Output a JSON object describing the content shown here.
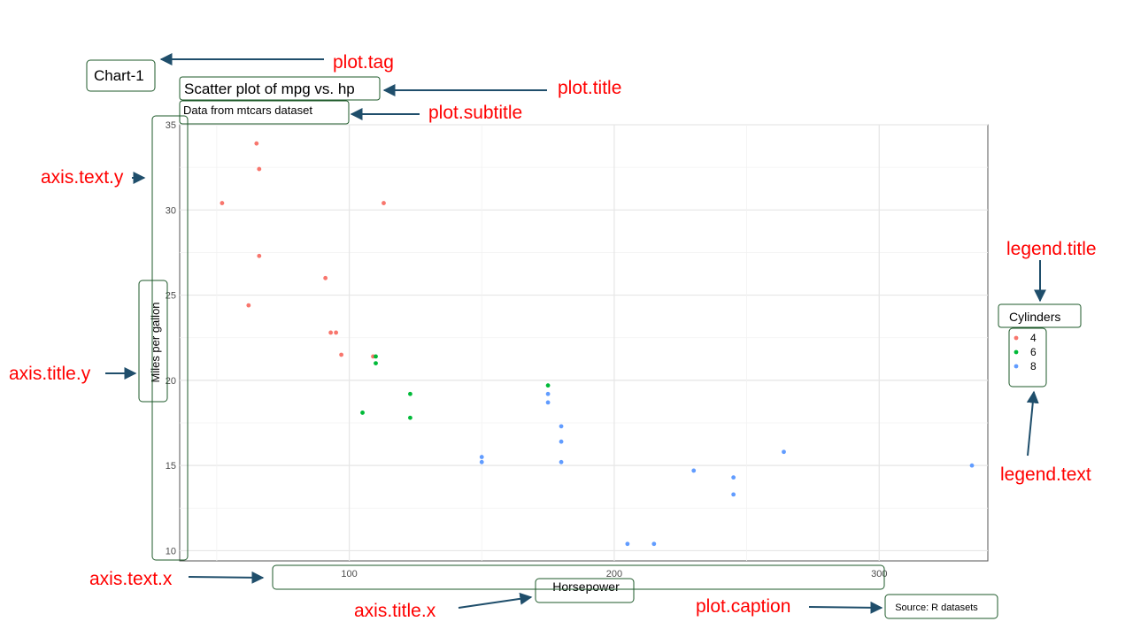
{
  "chart_data": {
    "type": "scatter",
    "tag": "Chart-1",
    "title": "Scatter plot of mpg vs. hp",
    "subtitle": "Data from mtcars dataset",
    "xlabel": "Horsepower",
    "ylabel": "Miles per gallon",
    "caption": "Source: R datasets",
    "xlim": [
      36,
      341
    ],
    "ylim": [
      9.4,
      35
    ],
    "xticks": [
      100,
      200,
      300
    ],
    "yticks": [
      10,
      15,
      20,
      25,
      30,
      35
    ],
    "grid": true,
    "legend": {
      "title": "Cylinders",
      "position": "right",
      "entries": [
        "4",
        "6",
        "8"
      ]
    },
    "colors": {
      "4": "#F8766D",
      "6": "#00BA38",
      "8": "#619CFF"
    },
    "series": [
      {
        "name": "4",
        "points": [
          [
            52,
            30.4
          ],
          [
            62,
            24.4
          ],
          [
            65,
            33.9
          ],
          [
            66,
            32.4
          ],
          [
            66,
            27.3
          ],
          [
            91,
            26.0
          ],
          [
            93,
            22.8
          ],
          [
            95,
            22.8
          ],
          [
            97,
            21.5
          ],
          [
            109,
            21.4
          ],
          [
            113,
            30.4
          ]
        ]
      },
      {
        "name": "6",
        "points": [
          [
            105,
            18.1
          ],
          [
            110,
            21.0
          ],
          [
            110,
            21.4
          ],
          [
            123,
            19.2
          ],
          [
            123,
            17.8
          ],
          [
            175,
            19.7
          ]
        ]
      },
      {
        "name": "8",
        "points": [
          [
            150,
            15.5
          ],
          [
            150,
            15.2
          ],
          [
            175,
            19.2
          ],
          [
            175,
            18.7
          ],
          [
            180,
            17.3
          ],
          [
            180,
            16.4
          ],
          [
            180,
            15.2
          ],
          [
            205,
            10.4
          ],
          [
            215,
            10.4
          ],
          [
            230,
            14.7
          ],
          [
            245,
            14.3
          ],
          [
            245,
            13.3
          ],
          [
            264,
            15.8
          ],
          [
            335,
            15.0
          ]
        ]
      }
    ]
  },
  "annotations": [
    {
      "text": "plot.tag",
      "color": "#ff0000"
    },
    {
      "text": "plot.title",
      "color": "#ff0000"
    },
    {
      "text": "plot.subtitle",
      "color": "#ff0000"
    },
    {
      "text": "axis.text.y",
      "color": "#ff0000"
    },
    {
      "text": "axis.title.y",
      "color": "#ff0000"
    },
    {
      "text": "legend.title",
      "color": "#ff0000"
    },
    {
      "text": "legend.text",
      "color": "#ff0000"
    },
    {
      "text": "axis.text.x",
      "color": "#ff0000"
    },
    {
      "text": "axis.title.x",
      "color": "#ff0000"
    },
    {
      "text": "plot.caption",
      "color": "#ff0000"
    }
  ]
}
